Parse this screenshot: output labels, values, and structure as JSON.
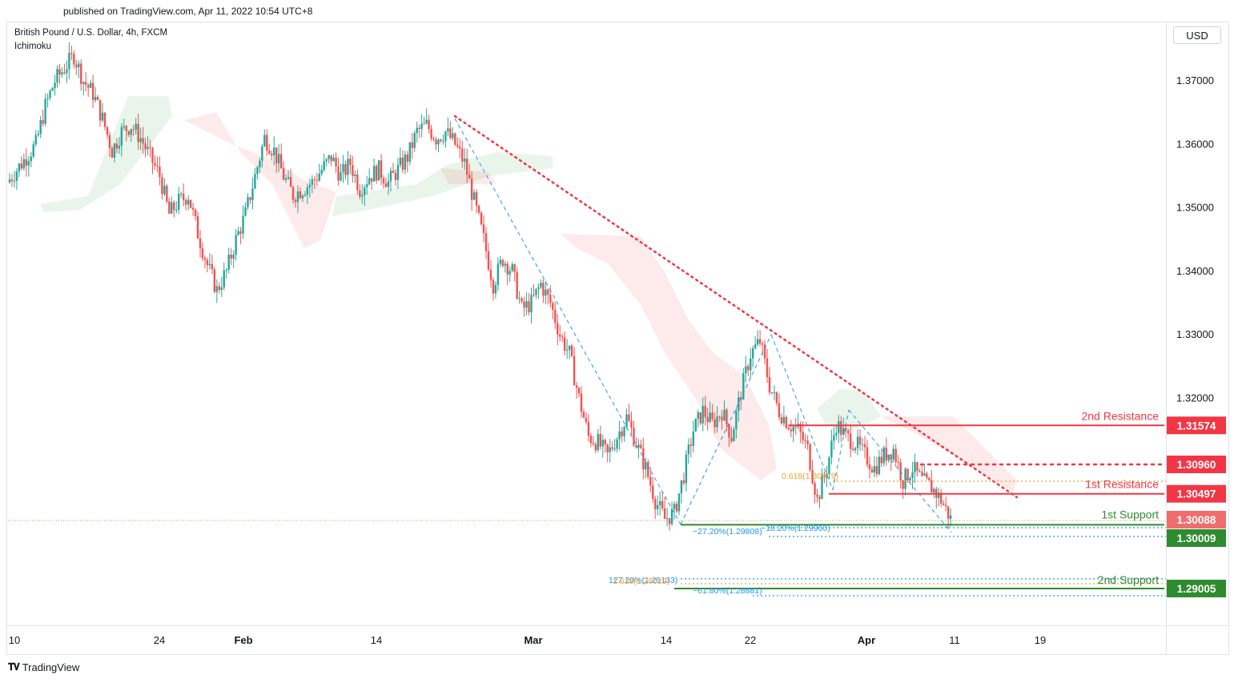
{
  "header": {
    "published": "published on TradingView.com, Apr 11, 2022 10:54 UTC+8"
  },
  "legend": {
    "symbol": "British Pound / U.S. Dollar, 4h, FXCM",
    "indicator": "Ichimoku"
  },
  "currency_button": "USD",
  "footer": {
    "brand": "TradingView",
    "logo_icon": "tradingview-logo-icon"
  },
  "colors": {
    "up": "#26a69a",
    "down": "#ef5350",
    "resistance": "#f23645",
    "support": "#2e8b2e",
    "fib_orange": "#f0a030",
    "fib_blue": "#2196f3"
  },
  "chart_data": {
    "type": "candlestick",
    "title": "British Pound / U.S. Dollar, 4h, FXCM",
    "y_ticks": [
      "1.37000",
      "1.36000",
      "1.35000",
      "1.34000",
      "1.33000",
      "1.32000"
    ],
    "ylim": [
      1.285,
      1.377
    ],
    "x_ticks": [
      "10",
      "24",
      "Feb",
      "14",
      "Mar",
      "14",
      "22",
      "Apr",
      "11",
      "19"
    ],
    "close_path": [
      [
        0,
        1.354
      ],
      [
        3,
        1.357
      ],
      [
        6,
        1.36
      ],
      [
        8,
        1.366
      ],
      [
        10,
        1.37
      ],
      [
        12,
        1.372
      ],
      [
        14,
        1.374
      ],
      [
        16,
        1.37
      ],
      [
        18,
        1.368
      ],
      [
        20,
        1.364
      ],
      [
        22,
        1.359
      ],
      [
        24,
        1.362
      ],
      [
        26,
        1.363
      ],
      [
        28,
        1.361
      ],
      [
        30,
        1.358
      ],
      [
        32,
        1.355
      ],
      [
        34,
        1.349
      ],
      [
        36,
        1.351
      ],
      [
        38,
        1.352
      ],
      [
        40,
        1.346
      ],
      [
        42,
        1.341
      ],
      [
        44,
        1.337
      ],
      [
        46,
        1.34
      ],
      [
        48,
        1.345
      ],
      [
        50,
        1.349
      ],
      [
        52,
        1.355
      ],
      [
        54,
        1.361
      ],
      [
        56,
        1.359
      ],
      [
        58,
        1.355
      ],
      [
        60,
        1.352
      ],
      [
        62,
        1.353
      ],
      [
        64,
        1.354
      ],
      [
        66,
        1.356
      ],
      [
        68,
        1.358
      ],
      [
        70,
        1.355
      ],
      [
        72,
        1.357
      ],
      [
        74,
        1.353
      ],
      [
        76,
        1.355
      ],
      [
        78,
        1.356
      ],
      [
        80,
        1.354
      ],
      [
        82,
        1.356
      ],
      [
        84,
        1.358
      ],
      [
        86,
        1.362
      ],
      [
        88,
        1.363
      ],
      [
        90,
        1.361
      ],
      [
        92,
        1.362
      ],
      [
        94,
        1.36
      ],
      [
        96,
        1.357
      ],
      [
        98,
        1.351
      ],
      [
        100,
        1.345
      ],
      [
        102,
        1.338
      ],
      [
        104,
        1.342
      ],
      [
        106,
        1.34
      ],
      [
        108,
        1.334
      ],
      [
        110,
        1.335
      ],
      [
        112,
        1.338
      ],
      [
        114,
        1.335
      ],
      [
        116,
        1.33
      ],
      [
        118,
        1.327
      ],
      [
        120,
        1.32
      ],
      [
        122,
        1.314
      ],
      [
        124,
        1.313
      ],
      [
        126,
        1.311
      ],
      [
        128,
        1.314
      ],
      [
        130,
        1.317
      ],
      [
        132,
        1.313
      ],
      [
        134,
        1.309
      ],
      [
        136,
        1.304
      ],
      [
        138,
        1.301
      ],
      [
        140,
        1.302
      ],
      [
        142,
        1.308
      ],
      [
        144,
        1.315
      ],
      [
        146,
        1.318
      ],
      [
        148,
        1.316
      ],
      [
        150,
        1.318
      ],
      [
        152,
        1.314
      ],
      [
        154,
        1.321
      ],
      [
        156,
        1.327
      ],
      [
        158,
        1.329
      ],
      [
        160,
        1.322
      ],
      [
        162,
        1.318
      ],
      [
        164,
        1.316
      ],
      [
        166,
        1.315
      ],
      [
        168,
        1.312
      ],
      [
        170,
        1.304
      ],
      [
        172,
        1.309
      ],
      [
        174,
        1.316
      ],
      [
        176,
        1.314
      ],
      [
        178,
        1.313
      ],
      [
        180,
        1.311
      ],
      [
        182,
        1.309
      ],
      [
        184,
        1.311
      ],
      [
        186,
        1.312
      ],
      [
        188,
        1.307
      ],
      [
        190,
        1.309
      ],
      [
        192,
        1.307
      ],
      [
        194,
        1.306
      ],
      [
        196,
        1.304
      ],
      [
        198,
        1.301
      ]
    ],
    "horizontal_lines": [
      {
        "name": "2nd Resistance",
        "value": 1.31574,
        "style": "solid",
        "color": "#f23645"
      },
      {
        "name": "",
        "value": 1.3096,
        "style": "dotted",
        "color": "#f23645"
      },
      {
        "name": "1st Resistance",
        "value": 1.30497,
        "style": "solid",
        "color": "#f23645"
      },
      {
        "name": "1st Support",
        "value": 1.30009,
        "style": "solid",
        "color": "#2e8b2e"
      },
      {
        "name": "2nd Support",
        "value": 1.29005,
        "style": "solid",
        "color": "#2e8b2e"
      }
    ],
    "price_labels": [
      {
        "text": "1.31574",
        "color": "#f23645"
      },
      {
        "text": "1.30960",
        "color": "#f23645"
      },
      {
        "text": "1.30497",
        "color": "#f23645"
      },
      {
        "text": "1.30088",
        "color": "#f06d6d"
      },
      {
        "text": "1.30009",
        "color": "#2e8b2e"
      },
      {
        "text": "1.29005",
        "color": "#2e8b2e"
      }
    ],
    "line_labels": [
      "2nd Resistance",
      "1st Resistance",
      "1st Support",
      "2nd Support"
    ],
    "fib_labels": [
      {
        "text": "0.618(1.30679)",
        "color": "#f0a030"
      },
      {
        "text": "−27.20%(1.29808)",
        "color": "#2196f3"
      },
      {
        "text": "−18.20%(1.29960)",
        "color": "#2196f3"
      },
      {
        "text": "127.20%(1.29133)",
        "color": "#2196f3"
      },
      {
        "text": "1.618(1.29019)",
        "color": "#f0a030"
      },
      {
        "text": "−61.80%(1.28881)",
        "color": "#2196f3"
      }
    ],
    "grid": false,
    "legend_position": "top-left"
  }
}
